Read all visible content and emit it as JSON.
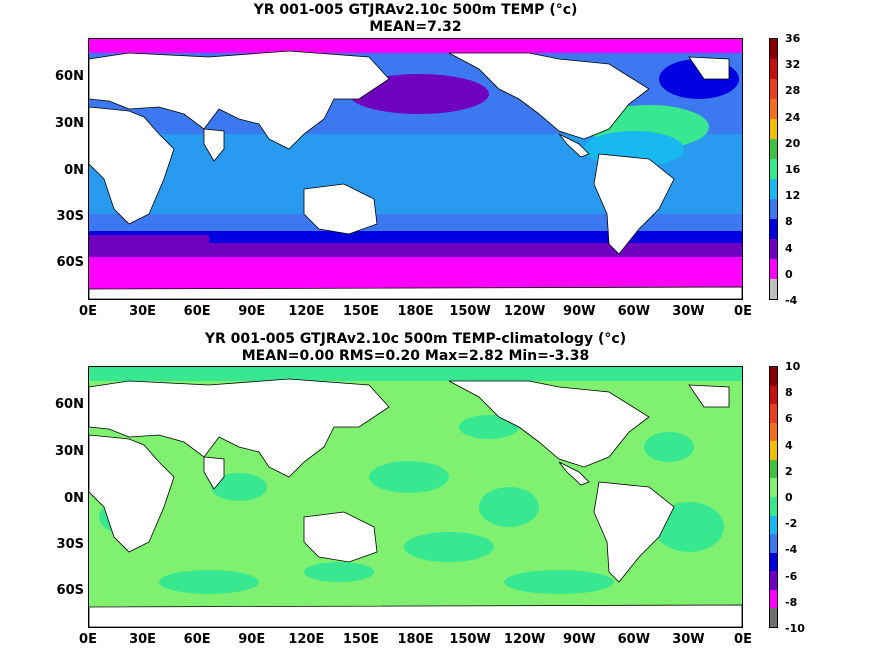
{
  "panels": [
    {
      "title_line1": "YR 001-005 GTJRAv2.10c 500m TEMP (°c)",
      "title_line2": "MEAN=7.32",
      "colorbar": [
        "36",
        "32",
        "28",
        "24",
        "20",
        "16",
        "12",
        "8",
        "4",
        "0",
        "-4"
      ],
      "colors": [
        "#8b0000",
        "#c41010",
        "#e84020",
        "#f07020",
        "#f0c000",
        "#40c040",
        "#38e890",
        "#18b8f0",
        "#3c78f0",
        "#0000e0",
        "#7000c0",
        "#ff00ff",
        "#bebebe"
      ]
    },
    {
      "title_line1": "YR 001-005 GTJRAv2.10c 500m TEMP-climatology (°c)",
      "title_line2": "MEAN=0.00   RMS=0.20   Max=2.82   Min=-3.38",
      "colorbar": [
        "10",
        "8",
        "6",
        "4",
        "2",
        "0",
        "-2",
        "-4",
        "-6",
        "-8",
        "-10"
      ],
      "colors": [
        "#8b0000",
        "#c41010",
        "#e84020",
        "#f07020",
        "#f0c000",
        "#40c040",
        "#80f070",
        "#38e890",
        "#18b8f0",
        "#3c78f0",
        "#0000e0",
        "#7000c0",
        "#ff00ff",
        "#707070"
      ]
    }
  ],
  "lat_labels": [
    "60N",
    "30N",
    "0N",
    "30S",
    "60S"
  ],
  "lon_labels": [
    "0E",
    "30E",
    "60E",
    "90E",
    "120E",
    "150E",
    "180E",
    "150W",
    "120W",
    "90W",
    "60W",
    "30W",
    "0E"
  ]
}
